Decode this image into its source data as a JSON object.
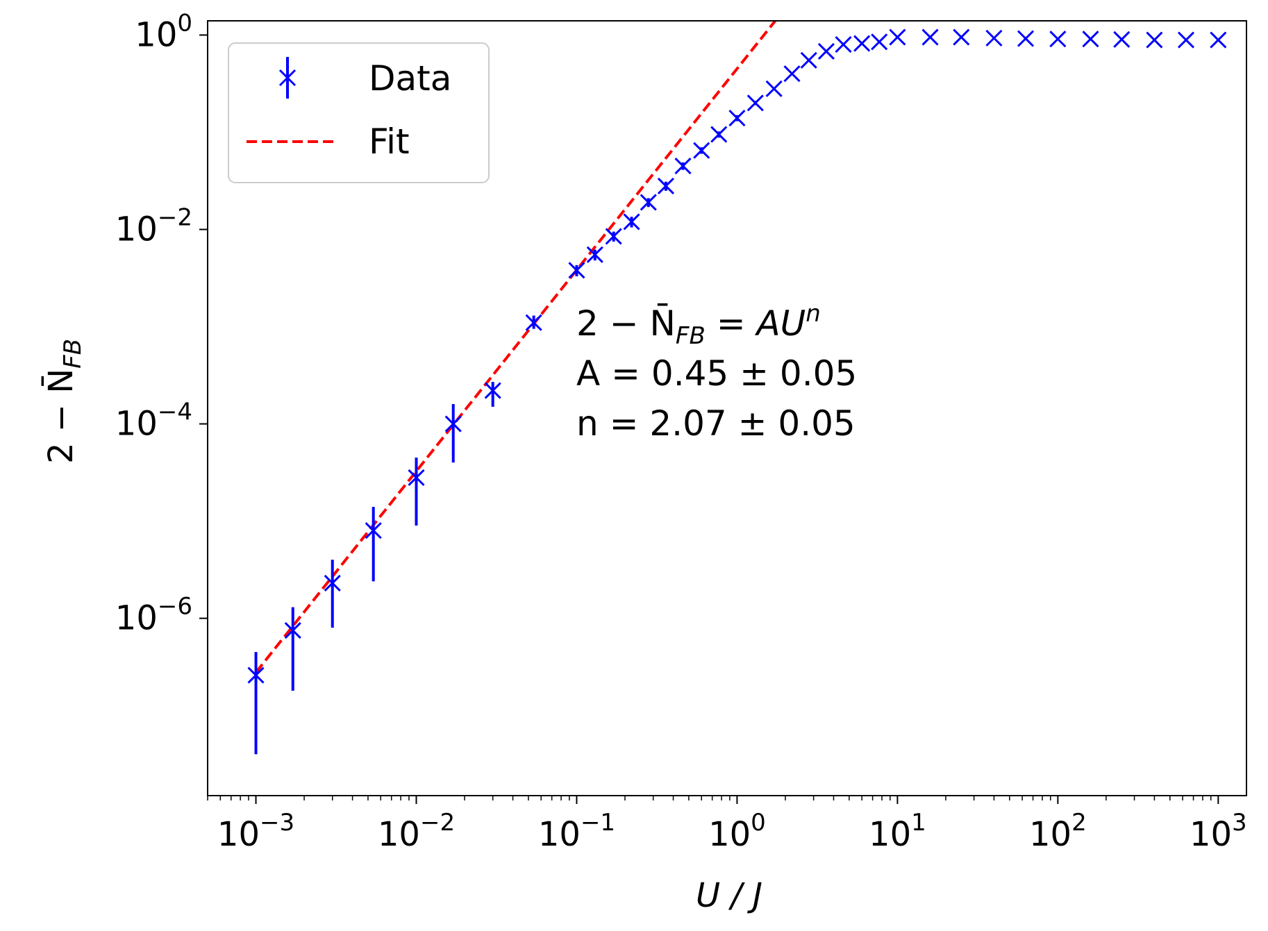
{
  "chart_data": {
    "type": "scatter",
    "xscale": "log",
    "yscale": "log",
    "xlabel": "U / J",
    "ylabel": "2 − N̄FB",
    "xlim": [
      0.0005,
      1500
    ],
    "ylim": [
      1.5e-08,
      1.4
    ],
    "xticks": [
      {
        "mantissa": "10",
        "exponent": "−3"
      },
      {
        "mantissa": "10",
        "exponent": "−2"
      },
      {
        "mantissa": "10",
        "exponent": "−1"
      },
      {
        "mantissa": "10",
        "exponent": "0"
      },
      {
        "mantissa": "10",
        "exponent": "1"
      },
      {
        "mantissa": "10",
        "exponent": "2"
      },
      {
        "mantissa": "10",
        "exponent": "3"
      }
    ],
    "yticks": [
      {
        "mantissa": "10",
        "exponent": "−6"
      },
      {
        "mantissa": "10",
        "exponent": "−4"
      },
      {
        "mantissa": "10",
        "exponent": "−2"
      },
      {
        "mantissa": "10",
        "exponent": "0"
      }
    ],
    "legend": {
      "placement": "upper-left",
      "entries": [
        {
          "label": "Data",
          "marker": "x-with-errorbar",
          "color": "#0000ff"
        },
        {
          "label": "Fit",
          "style": "dashed",
          "color": "#ff0000"
        }
      ]
    },
    "annotation": {
      "line1_lhs": "2 − N̄",
      "line1_sub": "FB",
      "line1_rhs": " = AU",
      "line1_sup": "n",
      "line2": "A = 0.45 ± 0.05",
      "line3": "n = 2.07 ± 0.05"
    },
    "series": [
      {
        "name": "Data",
        "type": "errorbar",
        "color": "#0000ff",
        "points": [
          {
            "x": 0.001,
            "y": 2.6e-07,
            "ylo": 4e-08,
            "yhi": 4.5e-07
          },
          {
            "x": 0.0017,
            "y": 7.5e-07,
            "ylo": 1.8e-07,
            "yhi": 1.3e-06
          },
          {
            "x": 0.003,
            "y": 2.3e-06,
            "ylo": 8e-07,
            "yhi": 4e-06
          },
          {
            "x": 0.0054,
            "y": 8e-06,
            "ylo": 2.4e-06,
            "yhi": 1.4e-05
          },
          {
            "x": 0.01,
            "y": 2.8e-05,
            "ylo": 9e-06,
            "yhi": 4.5e-05
          },
          {
            "x": 0.017,
            "y": 0.0001,
            "ylo": 4e-05,
            "yhi": 0.00016
          },
          {
            "x": 0.03,
            "y": 0.00022,
            "ylo": 0.00015,
            "yhi": 0.00027
          },
          {
            "x": 0.054,
            "y": 0.0011,
            "ylo": 0.00095,
            "yhi": 0.0013
          },
          {
            "x": 0.1,
            "y": 0.0038,
            "ylo": 0.0033,
            "yhi": 0.0043
          },
          {
            "x": 0.13,
            "y": 0.0055,
            "ylo": 0.0048,
            "yhi": 0.0062
          },
          {
            "x": 0.17,
            "y": 0.0085,
            "ylo": 0.0075,
            "yhi": 0.0095
          },
          {
            "x": 0.22,
            "y": 0.012,
            "ylo": 0.0105,
            "yhi": 0.0135
          },
          {
            "x": 0.28,
            "y": 0.019,
            "ylo": 0.017,
            "yhi": 0.021
          },
          {
            "x": 0.36,
            "y": 0.028,
            "ylo": 0.025,
            "yhi": 0.031
          },
          {
            "x": 0.46,
            "y": 0.045,
            "ylo": 0.041,
            "yhi": 0.049
          },
          {
            "x": 0.6,
            "y": 0.065,
            "ylo": 0.06,
            "yhi": 0.07
          },
          {
            "x": 0.77,
            "y": 0.095,
            "ylo": 0.088,
            "yhi": 0.102
          },
          {
            "x": 1.0,
            "y": 0.14,
            "ylo": 0.13,
            "yhi": 0.15
          },
          {
            "x": 1.3,
            "y": 0.2,
            "ylo": 0.19,
            "yhi": 0.21
          },
          {
            "x": 1.7,
            "y": 0.28,
            "ylo": 0.27,
            "yhi": 0.29
          },
          {
            "x": 2.2,
            "y": 0.4,
            "ylo": 0.39,
            "yhi": 0.41
          },
          {
            "x": 2.8,
            "y": 0.55,
            "ylo": 0.54,
            "yhi": 0.56
          },
          {
            "x": 3.6,
            "y": 0.68,
            "ylo": 0.67,
            "yhi": 0.69
          },
          {
            "x": 4.6,
            "y": 0.8,
            "ylo": 0.8,
            "yhi": 0.8
          },
          {
            "x": 6.0,
            "y": 0.82,
            "ylo": 0.82,
            "yhi": 0.82
          },
          {
            "x": 7.7,
            "y": 0.85,
            "ylo": 0.85,
            "yhi": 0.85
          },
          {
            "x": 10,
            "y": 0.95,
            "ylo": 0.95,
            "yhi": 0.95
          },
          {
            "x": 16,
            "y": 0.95,
            "ylo": 0.95,
            "yhi": 0.95
          },
          {
            "x": 25,
            "y": 0.95,
            "ylo": 0.95,
            "yhi": 0.95
          },
          {
            "x": 40,
            "y": 0.93,
            "ylo": 0.93,
            "yhi": 0.93
          },
          {
            "x": 63,
            "y": 0.92,
            "ylo": 0.92,
            "yhi": 0.92
          },
          {
            "x": 100,
            "y": 0.91,
            "ylo": 0.91,
            "yhi": 0.91
          },
          {
            "x": 160,
            "y": 0.91,
            "ylo": 0.91,
            "yhi": 0.91
          },
          {
            "x": 250,
            "y": 0.9,
            "ylo": 0.9,
            "yhi": 0.9
          },
          {
            "x": 400,
            "y": 0.89,
            "ylo": 0.89,
            "yhi": 0.89
          },
          {
            "x": 630,
            "y": 0.89,
            "ylo": 0.89,
            "yhi": 0.89
          },
          {
            "x": 1000,
            "y": 0.89,
            "ylo": 0.89,
            "yhi": 0.89
          }
        ]
      },
      {
        "name": "Fit",
        "type": "line",
        "style": "dashed",
        "color": "#ff0000",
        "model": "A*U^n",
        "A": 0.45,
        "n": 2.07,
        "x_range": [
          0.001,
          2.0
        ]
      }
    ]
  }
}
